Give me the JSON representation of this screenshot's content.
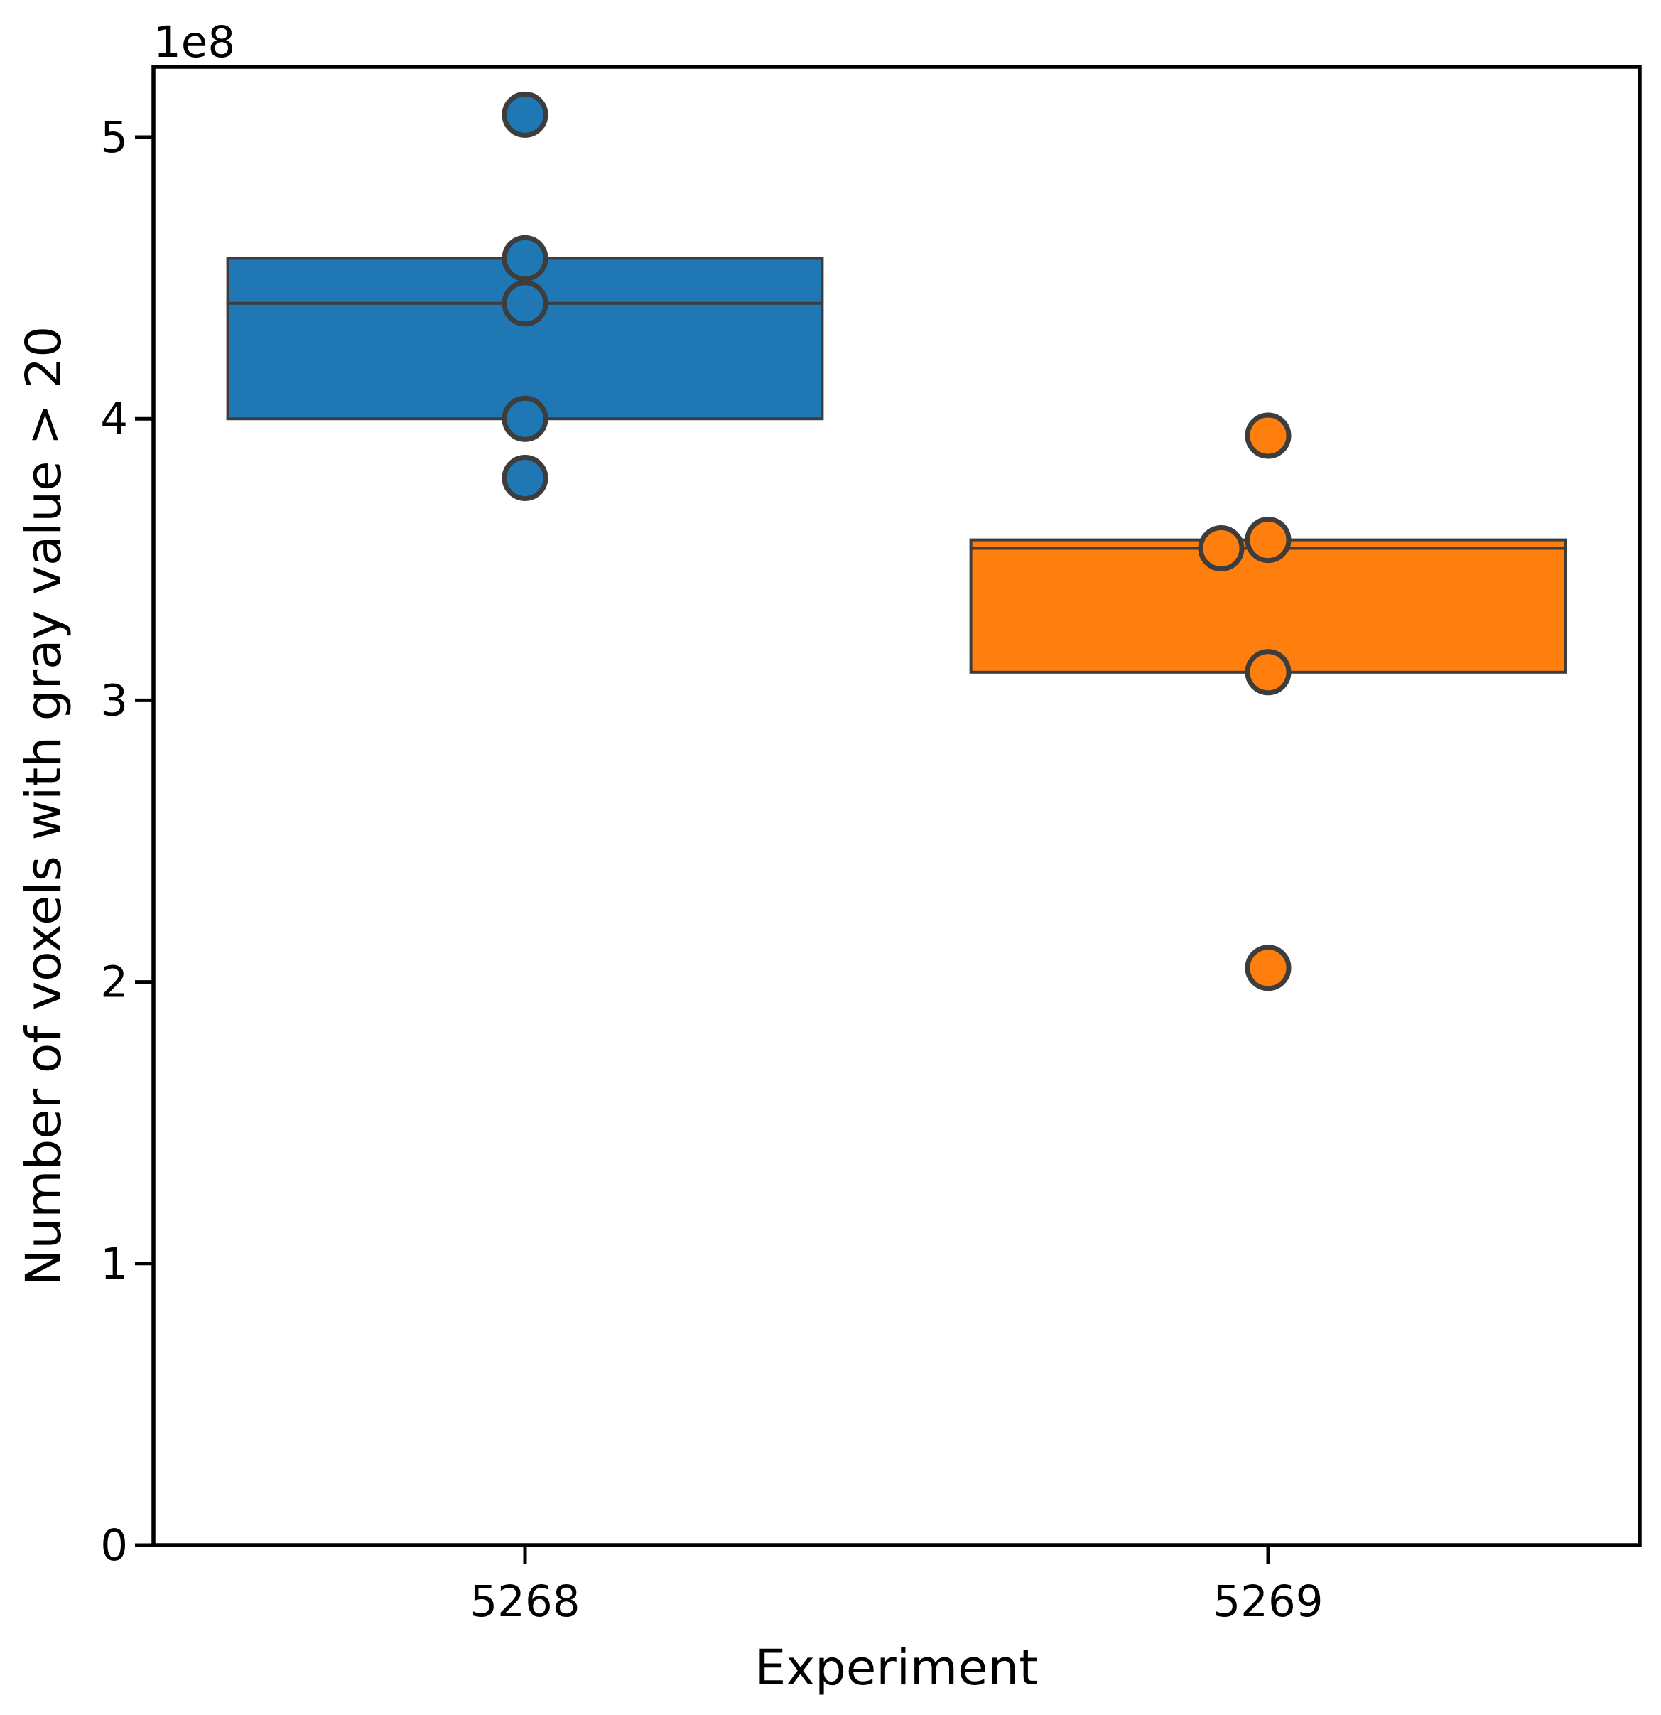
{
  "chart_data": {
    "type": "box",
    "xlabel": "Experiment",
    "ylabel": "Number of voxels with gray value > 20",
    "y_offset_label": "1e8",
    "ylim": [
      0,
      5.25
    ],
    "y_ticks": [
      0,
      1,
      2,
      3,
      4,
      5
    ],
    "y_tick_labels": [
      "0",
      "1",
      "2",
      "3",
      "4",
      "5"
    ],
    "categories": [
      "5268",
      "5269"
    ],
    "grid": false,
    "series": [
      {
        "category": "5268",
        "color": "#1f77b4",
        "q1": 4.0,
        "median": 4.41,
        "q3": 4.57,
        "points": [
          5.08,
          4.57,
          4.41,
          4.0,
          3.79
        ]
      },
      {
        "category": "5269",
        "color": "#ff7f0e",
        "q1": 3.1,
        "median": 3.54,
        "q3": 3.57,
        "points": [
          3.94,
          3.57,
          3.54,
          3.1,
          2.05
        ]
      }
    ]
  }
}
